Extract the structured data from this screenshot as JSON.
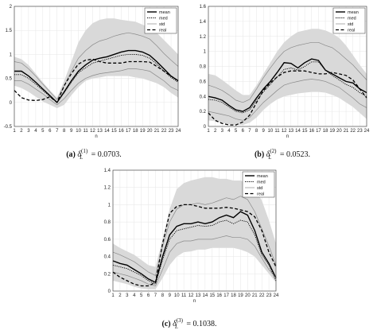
{
  "chart_data": [
    {
      "type": "line",
      "caption": {
        "label": "(a)",
        "symbol": "δ",
        "sub": "L",
        "sup": "(1)",
        "value": "= 0.0703."
      },
      "xlabel": "n",
      "ylabel": "",
      "x": [
        1,
        2,
        3,
        4,
        5,
        6,
        7,
        8,
        9,
        10,
        11,
        12,
        13,
        14,
        15,
        16,
        17,
        18,
        19,
        20,
        21,
        22,
        23,
        24
      ],
      "xlim": [
        1,
        24
      ],
      "ylim": [
        -0.5,
        2
      ],
      "yticks": [
        -0.5,
        0,
        0.5,
        1,
        1.5,
        2
      ],
      "ytick_labels": [
        "-0.5",
        "0",
        "0.5",
        "1",
        "1.5",
        "2"
      ],
      "legend": [
        "mean",
        "med",
        "std",
        "real"
      ],
      "band_upper": [
        0.95,
        0.9,
        0.78,
        0.6,
        0.42,
        0.25,
        0.1,
        0.45,
        0.85,
        1.25,
        1.5,
        1.65,
        1.72,
        1.75,
        1.75,
        1.72,
        1.7,
        1.68,
        1.62,
        1.55,
        1.45,
        1.3,
        1.15,
        1.0
      ],
      "band_lower": [
        0.35,
        0.3,
        0.22,
        0.12,
        0.02,
        -0.05,
        -0.12,
        -0.05,
        0.15,
        0.32,
        0.45,
        0.5,
        0.52,
        0.55,
        0.55,
        0.55,
        0.55,
        0.52,
        0.5,
        0.45,
        0.4,
        0.32,
        0.2,
        0.1
      ],
      "series": [
        {
          "name": "mean",
          "values": [
            0.65,
            0.65,
            0.55,
            0.42,
            0.28,
            0.14,
            0.0,
            0.22,
            0.45,
            0.65,
            0.78,
            0.88,
            0.92,
            0.95,
            1.0,
            1.05,
            1.08,
            1.08,
            1.05,
            0.98,
            0.85,
            0.7,
            0.55,
            0.45
          ]
        },
        {
          "name": "med",
          "values": [
            0.58,
            0.58,
            0.5,
            0.38,
            0.25,
            0.12,
            0.0,
            0.2,
            0.42,
            0.62,
            0.72,
            0.82,
            0.86,
            0.9,
            0.94,
            0.98,
            1.0,
            1.0,
            0.98,
            0.92,
            0.8,
            0.65,
            0.52,
            0.42
          ]
        },
        {
          "name": "std_upper",
          "values": [
            0.85,
            0.82,
            0.7,
            0.55,
            0.38,
            0.22,
            0.06,
            0.35,
            0.65,
            0.92,
            1.08,
            1.2,
            1.28,
            1.32,
            1.38,
            1.42,
            1.45,
            1.42,
            1.38,
            1.32,
            1.18,
            1.02,
            0.88,
            0.75
          ]
        },
        {
          "name": "std_lower",
          "values": [
            0.45,
            0.45,
            0.38,
            0.28,
            0.18,
            0.06,
            -0.05,
            0.08,
            0.25,
            0.4,
            0.5,
            0.56,
            0.6,
            0.62,
            0.64,
            0.66,
            0.7,
            0.7,
            0.68,
            0.65,
            0.55,
            0.45,
            0.32,
            0.25
          ]
        },
        {
          "name": "real",
          "values": [
            0.25,
            0.1,
            0.05,
            0.04,
            0.06,
            0.12,
            0.0,
            0.35,
            0.6,
            0.8,
            0.88,
            0.9,
            0.85,
            0.82,
            0.82,
            0.82,
            0.85,
            0.85,
            0.85,
            0.84,
            0.75,
            0.65,
            0.55,
            0.45
          ]
        }
      ]
    },
    {
      "type": "line",
      "caption": {
        "label": "(b)",
        "symbol": "δ",
        "sub": "L",
        "sup": "(2)",
        "value": "= 0.0523."
      },
      "xlabel": "n",
      "ylabel": "",
      "x": [
        1,
        2,
        3,
        4,
        5,
        6,
        7,
        8,
        9,
        10,
        11,
        12,
        13,
        14,
        15,
        16,
        17,
        18,
        19,
        20,
        21,
        22,
        23,
        24
      ],
      "xlim": [
        1,
        24
      ],
      "ylim": [
        0,
        1.6
      ],
      "yticks": [
        0,
        0.2,
        0.4,
        0.6,
        0.8,
        1,
        1.2,
        1.4,
        1.6
      ],
      "ytick_labels": [
        "0",
        "0.2",
        "0.4",
        "0.6",
        "0.8",
        "1",
        "1.2",
        "1.4",
        "1.6"
      ],
      "legend": [
        "mean",
        "med",
        "std",
        "real"
      ],
      "band_upper": [
        0.7,
        0.68,
        0.62,
        0.55,
        0.48,
        0.42,
        0.42,
        0.55,
        0.7,
        0.85,
        1.0,
        1.12,
        1.2,
        1.26,
        1.28,
        1.3,
        1.3,
        1.28,
        1.24,
        1.18,
        1.08,
        0.95,
        0.82,
        0.7
      ],
      "band_lower": [
        0.08,
        0.07,
        0.05,
        0.03,
        0.02,
        0.02,
        0.05,
        0.12,
        0.22,
        0.3,
        0.36,
        0.4,
        0.42,
        0.44,
        0.45,
        0.46,
        0.46,
        0.45,
        0.42,
        0.38,
        0.32,
        0.26,
        0.18,
        0.1
      ],
      "series": [
        {
          "name": "mean",
          "values": [
            0.4,
            0.38,
            0.35,
            0.28,
            0.22,
            0.2,
            0.25,
            0.38,
            0.5,
            0.6,
            0.72,
            0.85,
            0.84,
            0.78,
            0.85,
            0.9,
            0.88,
            0.75,
            0.7,
            0.65,
            0.6,
            0.58,
            0.5,
            0.45
          ]
        },
        {
          "name": "med",
          "values": [
            0.36,
            0.35,
            0.32,
            0.26,
            0.2,
            0.18,
            0.22,
            0.35,
            0.46,
            0.56,
            0.66,
            0.76,
            0.78,
            0.75,
            0.8,
            0.86,
            0.86,
            0.75,
            0.68,
            0.62,
            0.56,
            0.52,
            0.45,
            0.4
          ]
        },
        {
          "name": "std_upper",
          "values": [
            0.55,
            0.52,
            0.48,
            0.42,
            0.35,
            0.32,
            0.36,
            0.5,
            0.65,
            0.78,
            0.9,
            1.0,
            1.05,
            1.08,
            1.1,
            1.12,
            1.12,
            1.08,
            1.05,
            0.98,
            0.9,
            0.82,
            0.72,
            0.62
          ]
        },
        {
          "name": "std_lower",
          "values": [
            0.2,
            0.18,
            0.16,
            0.14,
            0.1,
            0.08,
            0.12,
            0.22,
            0.32,
            0.4,
            0.48,
            0.55,
            0.58,
            0.6,
            0.62,
            0.63,
            0.62,
            0.6,
            0.56,
            0.52,
            0.45,
            0.38,
            0.3,
            0.25
          ]
        },
        {
          "name": "real",
          "values": [
            0.18,
            0.08,
            0.04,
            0.02,
            0.02,
            0.06,
            0.15,
            0.32,
            0.48,
            0.58,
            0.66,
            0.72,
            0.74,
            0.74,
            0.74,
            0.72,
            0.7,
            0.7,
            0.72,
            0.7,
            0.68,
            0.62,
            0.5,
            0.38
          ]
        }
      ]
    },
    {
      "type": "line",
      "caption": {
        "label": "(c)",
        "symbol": "δ",
        "sub": "L",
        "sup": "(3)",
        "value": "= 0.1038."
      },
      "xlabel": "n",
      "ylabel": "",
      "x": [
        1,
        2,
        3,
        4,
        5,
        6,
        7,
        8,
        9,
        10,
        11,
        12,
        13,
        14,
        15,
        16,
        17,
        18,
        19,
        20,
        21,
        22,
        23,
        24
      ],
      "xlim": [
        1,
        24
      ],
      "ylim": [
        0,
        1.4
      ],
      "yticks": [
        0,
        0.2,
        0.4,
        0.6,
        0.8,
        1,
        1.2,
        1.4
      ],
      "ytick_labels": [
        "0",
        "0.2",
        "0.4",
        "0.6",
        "0.8",
        "1",
        "1.2",
        "1.4"
      ],
      "legend": [
        "mean",
        "med",
        "std",
        "real"
      ],
      "band_upper": [
        0.55,
        0.5,
        0.46,
        0.42,
        0.36,
        0.3,
        0.28,
        0.6,
        0.95,
        1.18,
        1.25,
        1.28,
        1.3,
        1.32,
        1.32,
        1.3,
        1.3,
        1.28,
        1.28,
        1.25,
        1.18,
        1.05,
        0.82,
        0.55
      ],
      "band_lower": [
        0.12,
        0.1,
        0.08,
        0.05,
        0.03,
        0.02,
        0.02,
        0.15,
        0.3,
        0.4,
        0.45,
        0.46,
        0.48,
        0.48,
        0.5,
        0.5,
        0.5,
        0.5,
        0.48,
        0.45,
        0.4,
        0.3,
        0.2,
        0.1
      ],
      "series": [
        {
          "name": "mean",
          "values": [
            0.35,
            0.32,
            0.3,
            0.25,
            0.2,
            0.14,
            0.1,
            0.4,
            0.65,
            0.75,
            0.78,
            0.78,
            0.8,
            0.78,
            0.8,
            0.85,
            0.88,
            0.85,
            0.92,
            0.88,
            0.7,
            0.45,
            0.32,
            0.15
          ]
        },
        {
          "name": "med",
          "values": [
            0.3,
            0.28,
            0.26,
            0.22,
            0.18,
            0.12,
            0.08,
            0.36,
            0.6,
            0.7,
            0.72,
            0.74,
            0.76,
            0.75,
            0.76,
            0.8,
            0.82,
            0.78,
            0.82,
            0.8,
            0.65,
            0.42,
            0.3,
            0.12
          ]
        },
        {
          "name": "std_upper",
          "values": [
            0.45,
            0.42,
            0.38,
            0.34,
            0.28,
            0.22,
            0.18,
            0.52,
            0.8,
            0.95,
            1.0,
            1.0,
            1.02,
            1.0,
            1.02,
            1.05,
            1.08,
            1.06,
            1.1,
            1.06,
            0.92,
            0.72,
            0.52,
            0.3
          ]
        },
        {
          "name": "std_lower",
          "values": [
            0.22,
            0.2,
            0.18,
            0.15,
            0.12,
            0.08,
            0.06,
            0.25,
            0.45,
            0.55,
            0.58,
            0.58,
            0.6,
            0.6,
            0.6,
            0.62,
            0.64,
            0.62,
            0.62,
            0.6,
            0.52,
            0.38,
            0.25,
            0.15
          ]
        },
        {
          "name": "real",
          "values": [
            0.22,
            0.16,
            0.12,
            0.08,
            0.06,
            0.06,
            0.1,
            0.55,
            0.9,
            0.98,
            1.0,
            1.0,
            0.98,
            0.96,
            0.96,
            0.96,
            0.97,
            0.96,
            0.94,
            0.92,
            0.86,
            0.7,
            0.45,
            0.28
          ]
        }
      ]
    }
  ]
}
